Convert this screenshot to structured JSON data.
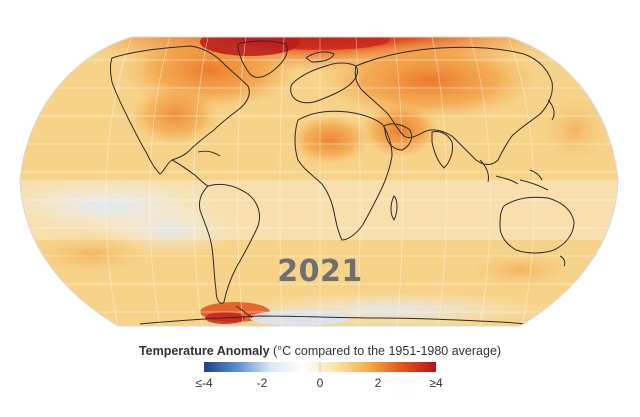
{
  "map": {
    "year": "2021",
    "projection": "equal-earth",
    "base_color": "#f7d38a"
  },
  "legend": {
    "title_bold": "Temperature Anomaly",
    "title_rest": " (°C compared to the 1951-1980 average)",
    "ticks": [
      "≤-4",
      "-2",
      "0",
      "2",
      "≥4"
    ],
    "colors": [
      "#1f3f8f",
      "#5a8fcf",
      "#dbe8f5",
      "#ffffff",
      "#fbe3a0",
      "#f6a94a",
      "#e2521c",
      "#b5121b"
    ]
  }
}
